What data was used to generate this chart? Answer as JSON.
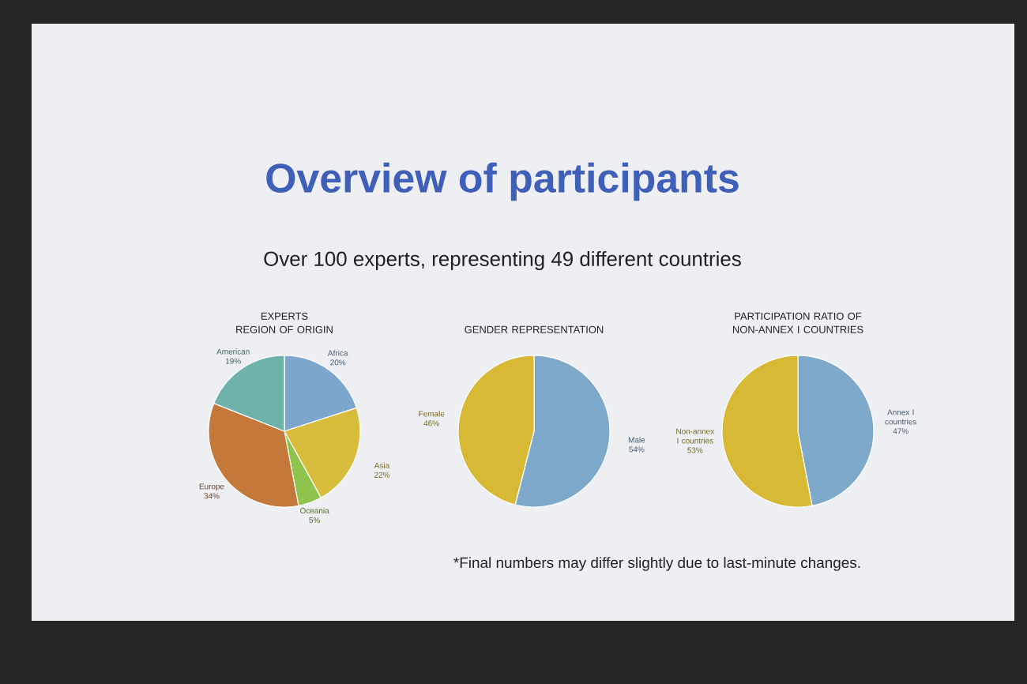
{
  "chart_data": [
    {
      "type": "other",
      "title": "Overview of participants",
      "subtitle": "Over 100 experts, representing 49 different countries",
      "annotations": [
        "*Final numbers may differ slightly due to last-minute changes."
      ]
    },
    {
      "type": "pie",
      "title": "EXPERTS",
      "subtitle": "REGION OF ORIGIN",
      "categories": [
        "Africa",
        "Asia",
        "Oceania",
        "Europe",
        "American"
      ],
      "values": [
        20,
        22,
        5,
        34,
        19
      ],
      "value_labels": [
        "20%",
        "22%",
        "5%",
        "34%",
        "19%"
      ],
      "colors": [
        "#7da6cc",
        "#d8bd3c",
        "#8ec44c",
        "#c4793a",
        "#6fb2aa"
      ]
    },
    {
      "type": "pie",
      "title": "GENDER REPRESENTATION",
      "categories": [
        "Male",
        "Female"
      ],
      "values": [
        54,
        46
      ],
      "value_labels": [
        "54%",
        "46%"
      ],
      "colors": [
        "#7fa9cb",
        "#d8b935"
      ]
    },
    {
      "type": "pie",
      "title": "PARTICIPATION RATIO OF NON-ANNEX I COUNTRIES",
      "categories": [
        "Annex I countries",
        "Non-annex I countries"
      ],
      "values": [
        47,
        53
      ],
      "value_labels": [
        "47%",
        "53%"
      ],
      "colors": [
        "#7fa9cb",
        "#d8b935"
      ]
    }
  ]
}
